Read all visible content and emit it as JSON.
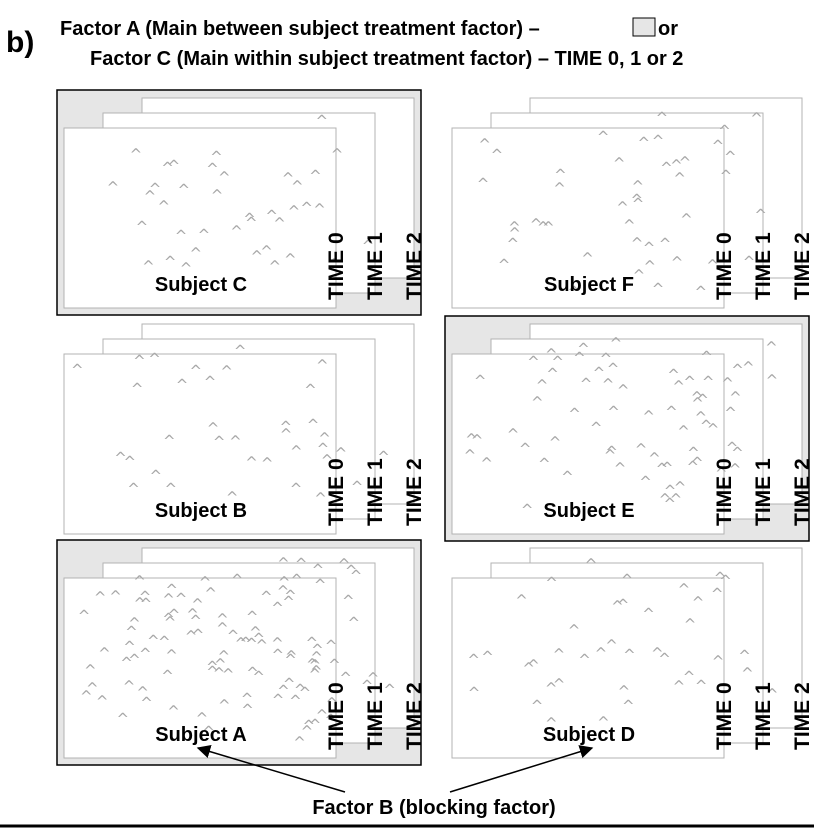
{
  "panel_label": "b)",
  "header": {
    "factor_a": "Factor A (Main between subject treatment factor) –",
    "factor_a_suffix": "or",
    "factor_c": "Factor C (Main within subject treatment factor) –  TIME 0, 1 or 2"
  },
  "times": [
    "TIME 0",
    "TIME 1",
    "TIME 2"
  ],
  "subjects": [
    {
      "name": "Subject C",
      "shaded": true
    },
    {
      "name": "Subject F",
      "shaded": false
    },
    {
      "name": "Subject B",
      "shaded": false
    },
    {
      "name": "Subject E",
      "shaded": true
    },
    {
      "name": "Subject A",
      "shaded": true
    },
    {
      "name": "Subject D",
      "shaded": false
    }
  ],
  "factor_b_label": "Factor B (blocking factor)",
  "colors": {
    "mark": "#a8a8a8",
    "shade": "#e6e6e6",
    "line": "#000000"
  },
  "mark_glyph": "^"
}
